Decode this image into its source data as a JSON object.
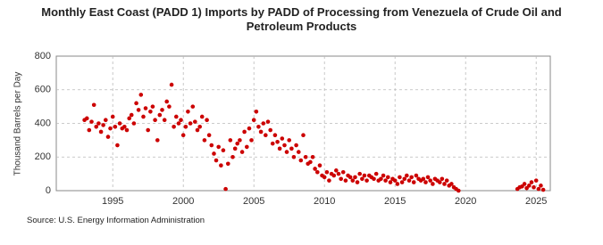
{
  "chart_data": {
    "type": "scatter",
    "title": "Monthly East Coast (PADD 1) Imports by PADD of Processing from Venezuela of Crude Oil and Petroleum Products",
    "y_label": "Thousand Barrels per Day",
    "source": "Source: U.S. Energy Information Administration",
    "xlim": [
      1991,
      2026
    ],
    "xticks": [
      1995,
      2000,
      2005,
      2010,
      2015,
      2020,
      2025
    ],
    "ylim": [
      0,
      800
    ],
    "yticks": [
      0,
      200,
      400,
      600,
      800
    ],
    "grid": true,
    "series": [
      {
        "color": "#cc0000",
        "x": [
          1993,
          1993.17,
          1993.33,
          1993.5,
          1993.67,
          1993.83,
          1994,
          1994.17,
          1994.33,
          1994.5,
          1994.67,
          1994.83,
          1995,
          1995.17,
          1995.33,
          1995.5,
          1995.67,
          1995.83,
          1996,
          1996.17,
          1996.33,
          1996.5,
          1996.67,
          1996.83,
          1997,
          1997.17,
          1997.33,
          1997.5,
          1997.67,
          1997.83,
          1998,
          1998.17,
          1998.33,
          1998.5,
          1998.67,
          1998.83,
          1999,
          1999.17,
          1999.33,
          1999.5,
          1999.67,
          1999.83,
          2000,
          2000.17,
          2000.33,
          2000.5,
          2000.67,
          2000.83,
          2001,
          2001.17,
          2001.33,
          2001.5,
          2001.67,
          2001.83,
          2002,
          2002.17,
          2002.33,
          2002.5,
          2002.67,
          2002.83,
          2003,
          2003.17,
          2003.33,
          2003.5,
          2003.67,
          2003.83,
          2004,
          2004.17,
          2004.33,
          2004.5,
          2004.67,
          2004.83,
          2005,
          2005.17,
          2005.33,
          2005.5,
          2005.67,
          2005.83,
          2006,
          2006.17,
          2006.33,
          2006.5,
          2006.67,
          2006.83,
          2007,
          2007.17,
          2007.33,
          2007.5,
          2007.67,
          2007.83,
          2008,
          2008.17,
          2008.33,
          2008.5,
          2008.67,
          2008.83,
          2009,
          2009.17,
          2009.33,
          2009.5,
          2009.67,
          2009.83,
          2010,
          2010.17,
          2010.33,
          2010.5,
          2010.67,
          2010.83,
          2011,
          2011.17,
          2011.33,
          2011.5,
          2011.67,
          2011.83,
          2012,
          2012.17,
          2012.33,
          2012.5,
          2012.67,
          2012.83,
          2013,
          2013.17,
          2013.33,
          2013.5,
          2013.67,
          2013.83,
          2014,
          2014.17,
          2014.33,
          2014.5,
          2014.67,
          2014.83,
          2015,
          2015.17,
          2015.33,
          2015.5,
          2015.67,
          2015.83,
          2016,
          2016.17,
          2016.33,
          2016.5,
          2016.67,
          2016.83,
          2017,
          2017.17,
          2017.33,
          2017.5,
          2017.67,
          2017.83,
          2018,
          2018.17,
          2018.33,
          2018.5,
          2018.67,
          2018.83,
          2019,
          2019.17,
          2019.33,
          2019.5,
          2023.67,
          2023.83,
          2024,
          2024.17,
          2024.33,
          2024.5,
          2024.67,
          2024.83,
          2025,
          2025.17,
          2025.33,
          2025.5
        ],
        "values": [
          420,
          430,
          360,
          410,
          510,
          380,
          400,
          350,
          390,
          420,
          320,
          370,
          440,
          380,
          270,
          400,
          370,
          380,
          360,
          430,
          450,
          400,
          520,
          480,
          570,
          440,
          490,
          360,
          470,
          500,
          420,
          300,
          450,
          480,
          420,
          530,
          500,
          630,
          380,
          440,
          400,
          420,
          330,
          380,
          470,
          400,
          500,
          410,
          360,
          380,
          440,
          300,
          420,
          330,
          270,
          220,
          180,
          260,
          150,
          240,
          10,
          160,
          300,
          200,
          250,
          280,
          300,
          230,
          350,
          260,
          370,
          300,
          420,
          470,
          380,
          350,
          400,
          330,
          410,
          360,
          280,
          330,
          290,
          250,
          310,
          270,
          230,
          300,
          250,
          200,
          270,
          230,
          180,
          330,
          200,
          160,
          170,
          200,
          130,
          110,
          150,
          90,
          80,
          110,
          60,
          100,
          90,
          120,
          100,
          70,
          110,
          60,
          90,
          80,
          60,
          80,
          50,
          100,
          70,
          90,
          60,
          90,
          80,
          70,
          100,
          60,
          70,
          90,
          60,
          80,
          50,
          70,
          60,
          40,
          80,
          50,
          70,
          90,
          60,
          80,
          50,
          90,
          70,
          60,
          70,
          50,
          80,
          60,
          40,
          70,
          60,
          50,
          70,
          40,
          60,
          30,
          40,
          20,
          10,
          0,
          10,
          20,
          25,
          40,
          15,
          30,
          50,
          20,
          60,
          10,
          30,
          5
        ]
      }
    ]
  }
}
